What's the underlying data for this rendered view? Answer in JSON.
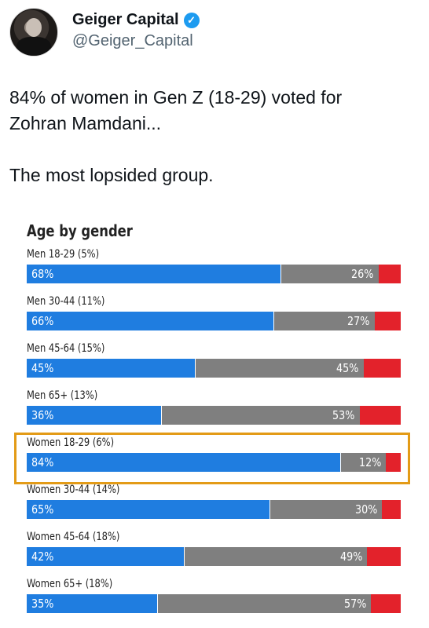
{
  "author": {
    "name": "Geiger Capital",
    "handle": "@Geiger_Capital",
    "verified_icon": "verified-check-icon"
  },
  "tweet": {
    "line1": "84% of women in Gen Z (18-29) voted for",
    "line2": "Zohran Mamdani...",
    "line3": "The most lopsided group."
  },
  "colors": {
    "democrat": "#1f7de0",
    "republican": "#7f7f7f",
    "other": "#e3222b",
    "highlight": "#e39b17"
  },
  "chart_data": {
    "type": "bar",
    "orientation": "horizontal-stacked",
    "title": "Age by gender",
    "categories": [
      "Men 18-29 (5%)",
      "Men 30-44 (11%)",
      "Men 45-64 (15%)",
      "Men 65+ (13%)",
      "Women 18-29 (6%)",
      "Women 30-44 (14%)",
      "Women 45-64 (18%)",
      "Women 65+ (18%)"
    ],
    "series": [
      {
        "values": [
          68,
          66,
          45,
          36,
          84,
          65,
          42,
          35
        ],
        "color": "#1f7de0"
      },
      {
        "values": [
          26,
          27,
          45,
          53,
          12,
          30,
          49,
          57
        ],
        "color": "#7f7f7f"
      }
    ],
    "labels_left": [
      "68%",
      "66%",
      "45%",
      "36%",
      "84%",
      "65%",
      "42%",
      "35%"
    ],
    "labels_right": [
      "26%",
      "27%",
      "45%",
      "53%",
      "12%",
      "30%",
      "49%",
      "57%"
    ],
    "highlighted_category": "Women 18-29 (6%)",
    "xlim": [
      0,
      100
    ]
  }
}
